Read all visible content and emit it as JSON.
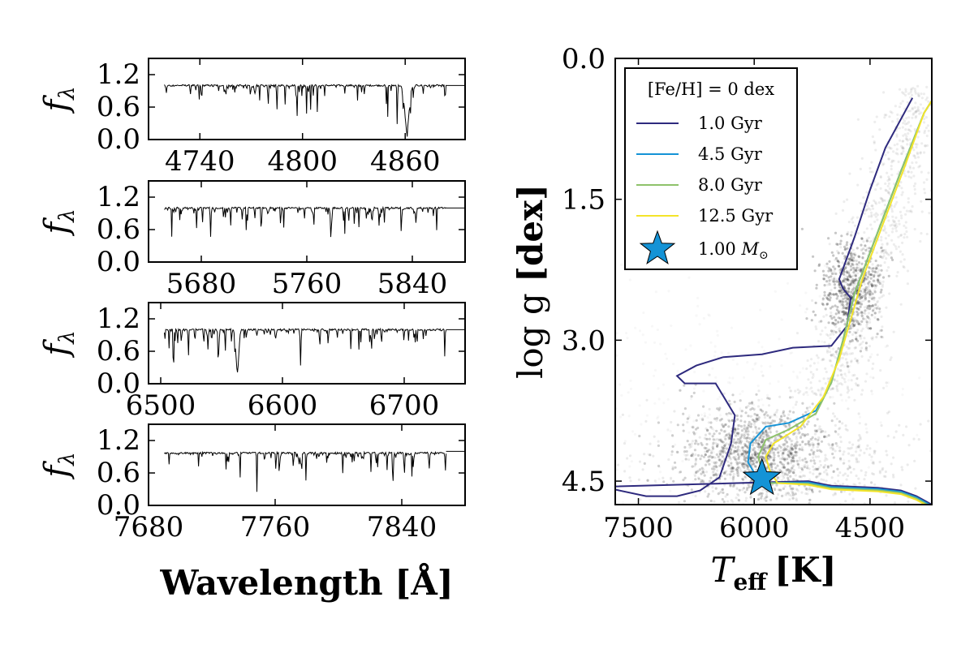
{
  "chart_data": [
    {
      "type": "line",
      "panel": "spectrum-1",
      "xlim": [
        4710,
        4895
      ],
      "ylim": [
        0.0,
        1.5
      ],
      "x_ticks": [
        "4740",
        "4800",
        "4860"
      ],
      "y_ticks": [
        "0.0",
        "0.6",
        "1.2"
      ],
      "ylabel": "f",
      "ylabel_sub": "λ",
      "continuum": 1.0,
      "line_profile": [
        {
          "x": 4861,
          "depth": 0.8,
          "width": 1.8
        }
      ]
    },
    {
      "type": "line",
      "panel": "spectrum-2",
      "xlim": [
        5640,
        5880
      ],
      "ylim": [
        0.0,
        1.5
      ],
      "x_ticks": [
        "5680",
        "5760",
        "5840"
      ],
      "y_ticks": [
        "0.0",
        "0.6",
        "1.2"
      ],
      "ylabel": "f",
      "ylabel_sub": "λ",
      "continuum": 1.0,
      "line_profile": []
    },
    {
      "type": "line",
      "panel": "spectrum-3",
      "xlim": [
        6490,
        6750
      ],
      "ylim": [
        0.0,
        1.5
      ],
      "x_ticks": [
        "6500",
        "6600",
        "6700"
      ],
      "y_ticks": [
        "0.0",
        "0.6",
        "1.2"
      ],
      "ylabel": "f",
      "ylabel_sub": "λ",
      "continuum": 1.0,
      "line_profile": [
        {
          "x": 6563,
          "depth": 0.78,
          "width": 1.6
        }
      ]
    },
    {
      "type": "line",
      "panel": "spectrum-4",
      "xlim": [
        7680,
        7880
      ],
      "ylim": [
        0.0,
        1.5
      ],
      "x_ticks": [
        "7680",
        "7760",
        "7840"
      ],
      "y_ticks": [
        "0.0",
        "0.6",
        "1.2"
      ],
      "ylabel": "f",
      "ylabel_sub": "λ",
      "continuum": 0.97,
      "line_profile": []
    },
    {
      "type": "line",
      "panel": "kiel-diagram",
      "xlim": [
        7800,
        3700
      ],
      "ylim": [
        4.75,
        0.0
      ],
      "x_ticks": [
        "7500",
        "6000",
        "4500"
      ],
      "y_ticks": [
        "0.0",
        "1.5",
        "3.0",
        "4.5"
      ],
      "xlabel": "T",
      "xlabel_sub": "eff",
      "xlabel_unit": "[K]",
      "ylabel": "log g",
      "ylabel_unit": "[dex]",
      "legend_title": "[Fe/H] = 0 dex",
      "legend_position": "upper-left",
      "series": [
        {
          "name": "1.0 Gyr",
          "color": "#2e2a7e",
          "x": [
            7950,
            7800,
            7400,
            7000,
            6700,
            6450,
            6300,
            6250,
            6500,
            6900,
            7000,
            6750,
            6400,
            5900,
            5500,
            5000,
            4800,
            4750,
            4850,
            4900,
            4700,
            4500,
            4300,
            3950
          ],
          "y": [
            4.56,
            4.59,
            4.66,
            4.66,
            4.6,
            4.46,
            4.1,
            3.8,
            3.46,
            3.46,
            3.38,
            3.27,
            3.18,
            3.15,
            3.08,
            3.06,
            2.85,
            2.55,
            2.45,
            2.35,
            1.9,
            1.4,
            0.95,
            0.42
          ]
        },
        {
          "name": "4.5 Gyr",
          "color": "#1493d6",
          "x": [
            5900,
            6000,
            6080,
            6050,
            5850,
            5550,
            5200,
            5000,
            4850,
            4700,
            4400,
            4100,
            3800,
            3700
          ],
          "y": [
            4.52,
            4.41,
            4.3,
            4.1,
            3.92,
            3.88,
            3.75,
            3.45,
            3.0,
            2.5,
            1.85,
            1.2,
            0.58,
            0.45
          ]
        },
        {
          "name": "8.0 Gyr",
          "color": "#8ec26a",
          "x": [
            5800,
            5900,
            5950,
            5850,
            5550,
            5200,
            5000,
            4850,
            4700,
            4400,
            4100,
            3800,
            3700
          ],
          "y": [
            4.52,
            4.38,
            4.24,
            4.06,
            3.95,
            3.78,
            3.45,
            3.0,
            2.5,
            1.85,
            1.2,
            0.58,
            0.45
          ]
        },
        {
          "name": "12.5 Gyr",
          "color": "#f3e42a",
          "x": [
            5700,
            5800,
            5850,
            5750,
            5400,
            5100,
            4900,
            4750,
            4600,
            4350,
            4050,
            3800,
            3700
          ],
          "y": [
            4.52,
            4.38,
            4.24,
            4.1,
            3.92,
            3.6,
            3.2,
            2.78,
            2.35,
            1.8,
            1.15,
            0.58,
            0.45
          ]
        },
        {
          "name": "1.00 M",
          "name_sub": "⊙",
          "color": "#1493d6",
          "marker": "star",
          "x": [
            5900
          ],
          "y": [
            4.47
          ]
        }
      ],
      "tail": {
        "comment_free": true,
        "x": [
          5300,
          5000,
          4700,
          4400,
          4100,
          3900,
          3700
        ],
        "y": [
          4.5,
          4.55,
          4.56,
          4.57,
          4.6,
          4.66,
          4.75
        ]
      }
    }
  ],
  "shared": {
    "wavelength_label": "Wavelength [Å]",
    "legend": {
      "title": "[Fe/H] = 0 dex",
      "items": [
        "1.0 Gyr",
        "4.5 Gyr",
        "8.0 Gyr",
        "12.5 Gyr"
      ],
      "star_label": "1.00",
      "star_unit": "M",
      "star_unit_sub": "⊙"
    }
  }
}
